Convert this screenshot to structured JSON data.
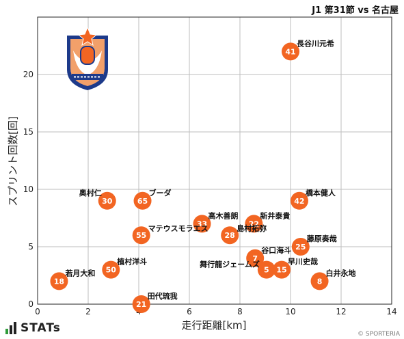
{
  "header": {
    "title": "J1 第31節 vs 名古屋"
  },
  "brand": {
    "name": "STATs"
  },
  "copyright": "© SPORTERIA",
  "colors": {
    "point": "#f26522",
    "grid": "#bdbdbd",
    "logo_blue": "#1d3a8a",
    "logo_orange": "#f26522"
  },
  "chart_data": {
    "type": "scatter",
    "xlabel": "走行距離[km]",
    "ylabel": "スプリント回数[回]",
    "xlim": [
      0,
      14
    ],
    "ylim": [
      0,
      25
    ],
    "xticks": [
      0,
      2,
      4,
      6,
      8,
      10,
      12,
      14
    ],
    "yticks": [
      0,
      5,
      10,
      15,
      20
    ],
    "grid": true,
    "points": [
      {
        "number": "41",
        "name": "長谷川元希",
        "x": 10.0,
        "y": 22
      },
      {
        "number": "30",
        "name": "奥村仁",
        "x": 2.75,
        "y": 9
      },
      {
        "number": "65",
        "name": "ブーダ",
        "x": 4.15,
        "y": 9
      },
      {
        "number": "42",
        "name": "橋本健人",
        "x": 10.35,
        "y": 9
      },
      {
        "number": "33",
        "name": "高木善朗",
        "x": 6.5,
        "y": 7
      },
      {
        "number": "22",
        "name": "新井泰貴",
        "x": 8.55,
        "y": 7
      },
      {
        "number": "28",
        "name": "島村拓弥",
        "x": 7.6,
        "y": 6
      },
      {
        "number": "55",
        "name": "マテウスモラエス",
        "x": 4.1,
        "y": 6
      },
      {
        "number": "25",
        "name": "藤原奏哉",
        "x": 10.4,
        "y": 5
      },
      {
        "number": "7",
        "name": "谷口海斗",
        "x": 8.6,
        "y": 4
      },
      {
        "number": "5",
        "name": "舞行龍ジェームズ",
        "x": 9.05,
        "y": 3
      },
      {
        "number": "15",
        "name": "早川史哉",
        "x": 9.65,
        "y": 3
      },
      {
        "number": "50",
        "name": "植村洋斗",
        "x": 2.9,
        "y": 3
      },
      {
        "number": "18",
        "name": "若月大和",
        "x": 0.85,
        "y": 2
      },
      {
        "number": "8",
        "name": "白井永地",
        "x": 11.15,
        "y": 2
      },
      {
        "number": "21",
        "name": "田代琉我",
        "x": 4.1,
        "y": 0
      }
    ]
  }
}
